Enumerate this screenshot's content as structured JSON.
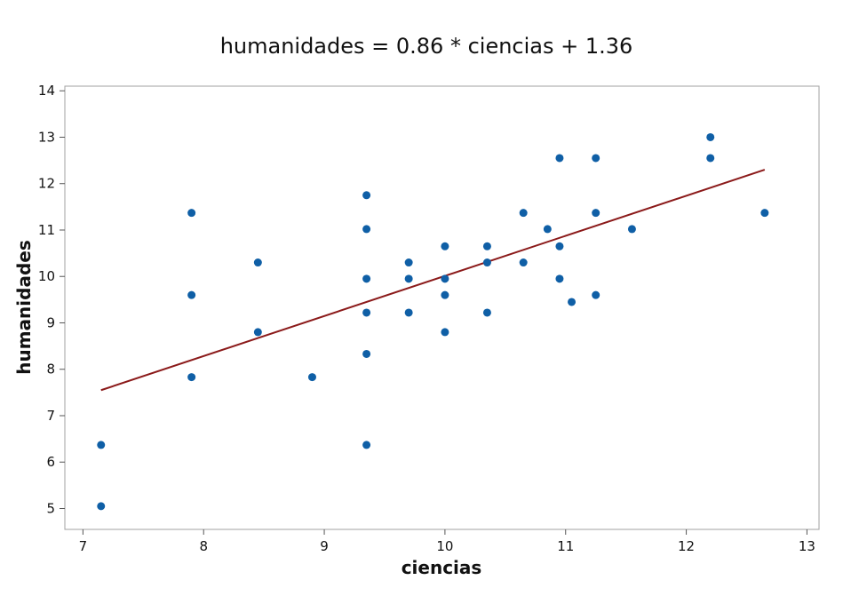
{
  "chart_data": {
    "type": "scatter",
    "title": "humanidades = 0.86 * ciencias + 1.36",
    "xlabel": "ciencias",
    "ylabel": "humanidades",
    "xlim": [
      6.85,
      13.1
    ],
    "ylim": [
      4.55,
      14.1
    ],
    "xticks": [
      "7",
      "8",
      "9",
      "10",
      "11",
      "12",
      "13"
    ],
    "yticks": [
      "5",
      "6",
      "7",
      "8",
      "9",
      "10",
      "11",
      "12",
      "13",
      "14"
    ],
    "grid": false,
    "colors": {
      "points": "#0f5fa6",
      "fit_line": "#8b1a1a"
    },
    "fit_line": {
      "slope": 0.86,
      "intercept": 1.36,
      "x": [
        7.15,
        12.65
      ],
      "y": [
        7.55,
        12.3
      ]
    },
    "points": [
      [
        7.15,
        6.37
      ],
      [
        7.15,
        5.05
      ],
      [
        7.9,
        11.37
      ],
      [
        7.9,
        9.6
      ],
      [
        7.9,
        7.83
      ],
      [
        8.45,
        10.3
      ],
      [
        8.45,
        8.8
      ],
      [
        8.9,
        7.83
      ],
      [
        9.35,
        11.75
      ],
      [
        9.35,
        11.02
      ],
      [
        9.35,
        9.95
      ],
      [
        9.35,
        9.22
      ],
      [
        9.35,
        8.33
      ],
      [
        9.35,
        6.37
      ],
      [
        9.7,
        10.3
      ],
      [
        9.7,
        9.95
      ],
      [
        9.7,
        9.22
      ],
      [
        10.0,
        10.65
      ],
      [
        10.0,
        9.95
      ],
      [
        10.0,
        9.6
      ],
      [
        10.0,
        8.8
      ],
      [
        10.35,
        10.65
      ],
      [
        10.35,
        10.3
      ],
      [
        10.35,
        9.22
      ],
      [
        10.65,
        11.37
      ],
      [
        10.65,
        10.3
      ],
      [
        10.85,
        11.02
      ],
      [
        10.95,
        12.55
      ],
      [
        10.95,
        10.65
      ],
      [
        10.95,
        9.95
      ],
      [
        11.05,
        9.45
      ],
      [
        11.25,
        12.55
      ],
      [
        11.25,
        11.37
      ],
      [
        11.25,
        9.6
      ],
      [
        11.55,
        11.02
      ],
      [
        12.2,
        13.0
      ],
      [
        12.2,
        12.55
      ],
      [
        12.65,
        11.37
      ]
    ]
  }
}
